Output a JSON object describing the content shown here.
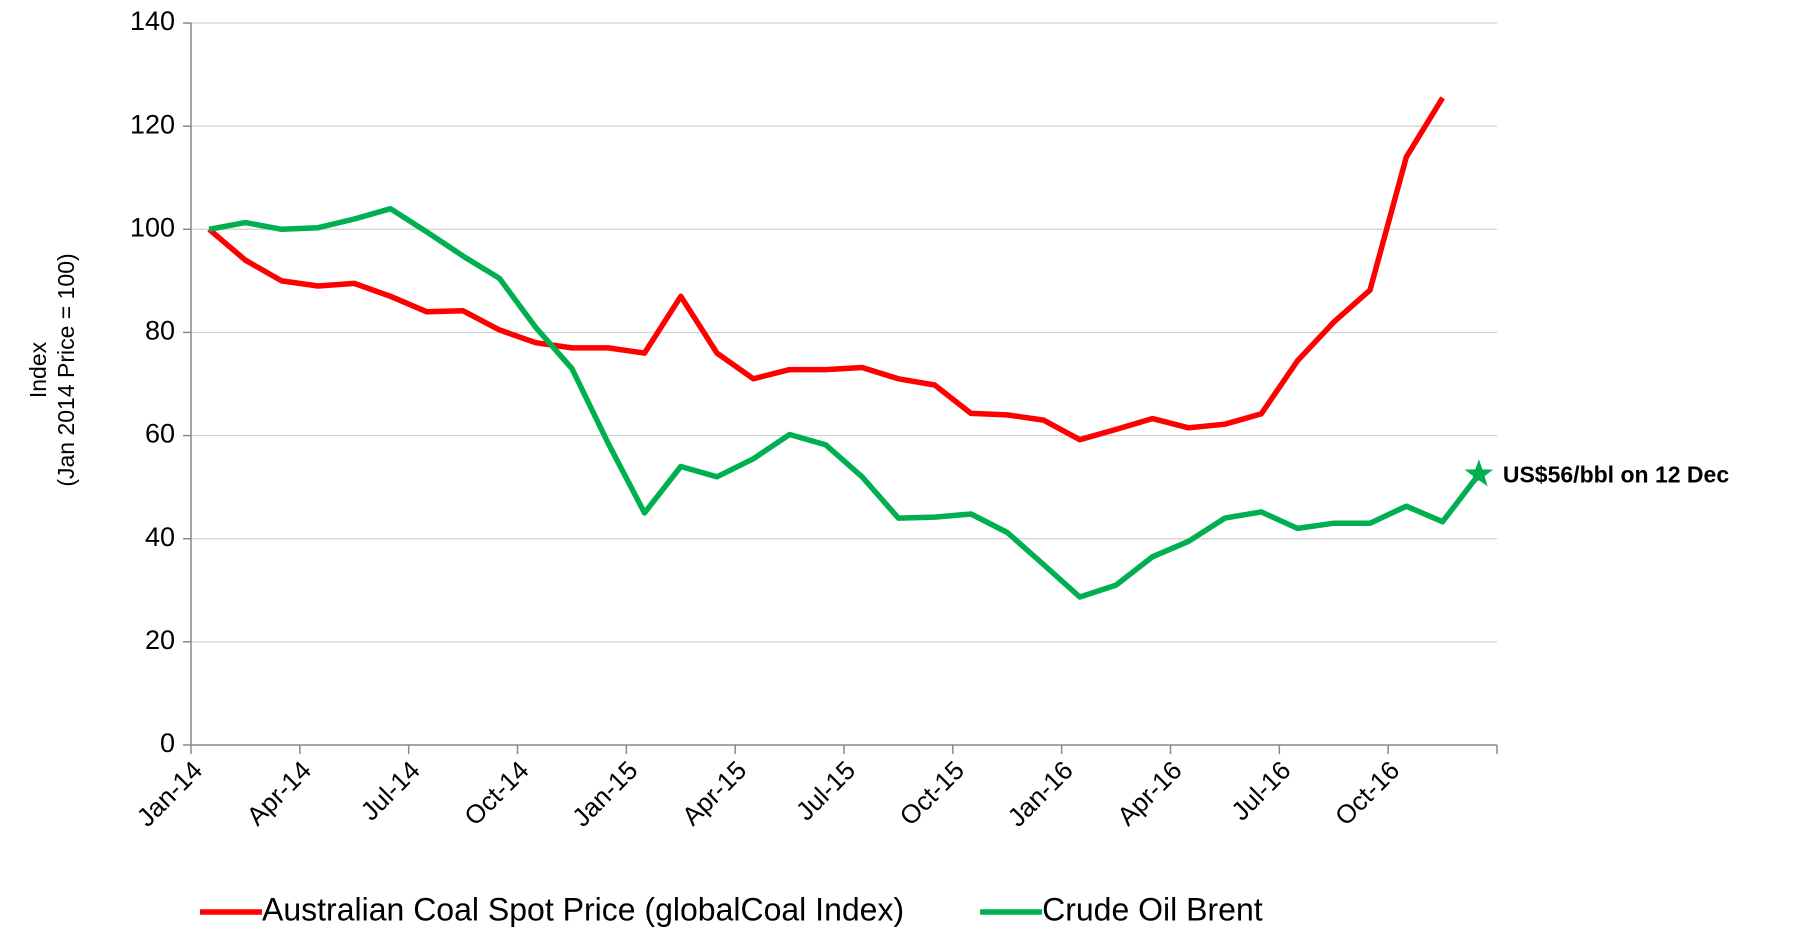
{
  "chart_data": {
    "type": "line",
    "categories": [
      "Jan-14",
      null,
      null,
      "Apr-14",
      null,
      null,
      "Jul-14",
      null,
      null,
      "Oct-14",
      null,
      null,
      "Jan-15",
      null,
      null,
      "Apr-15",
      null,
      null,
      "Jul-15",
      null,
      null,
      "Oct-15",
      null,
      null,
      "Jan-16",
      null,
      null,
      "Apr-16",
      null,
      null,
      "Jul-16",
      null,
      null,
      "Oct-16",
      null,
      null
    ],
    "series": [
      {
        "name": "Australian Coal Spot Price (globalCoal Index)",
        "color": "#ff0000",
        "values": [
          100,
          94,
          90,
          89,
          89.5,
          87,
          84,
          84.2,
          80.5,
          78,
          77,
          77,
          76,
          87,
          76,
          71,
          72.8,
          72.8,
          73.2,
          71,
          69.8,
          64.3,
          64,
          63,
          59.2,
          61.2,
          63.3,
          61.5,
          62.2,
          64.2,
          74.5,
          82,
          88.2,
          114,
          125.5,
          null
        ]
      },
      {
        "name": "Crude Oil Brent",
        "color": "#00b050",
        "values": [
          100,
          101.3,
          100,
          100.3,
          102,
          104,
          99.5,
          94.8,
          90.5,
          81,
          73,
          58.5,
          45,
          54,
          52,
          55.5,
          60.2,
          58.2,
          52,
          44,
          44.2,
          44.8,
          41.2,
          35,
          28.7,
          31,
          36.5,
          39.5,
          44,
          45.2,
          42,
          43,
          43,
          46.3,
          43.3,
          52.5
        ]
      }
    ],
    "y_label": [
      "Index",
      "(Jan 2014 Price = 100)"
    ],
    "annotation": "US$56/bbl on 12 Dec",
    "ylim": [
      0,
      140
    ],
    "yticks": [
      0,
      20,
      40,
      60,
      80,
      100,
      120,
      140
    ],
    "grid": true,
    "legend": "bottom"
  }
}
